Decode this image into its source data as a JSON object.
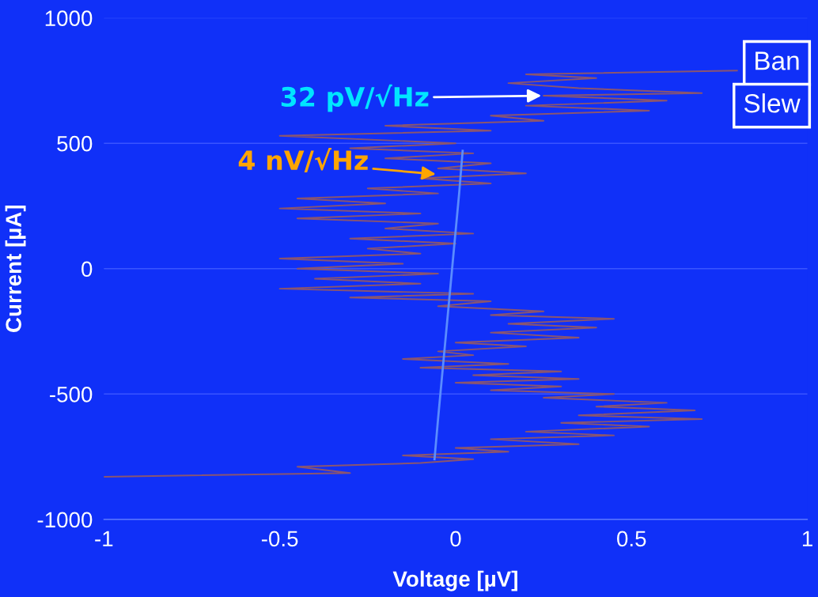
{
  "chart_data": {
    "type": "line",
    "xlabel": "Voltage [µV]",
    "ylabel": "Current [µA]",
    "xlim": [
      -1,
      1
    ],
    "ylim": [
      -1000,
      1000
    ],
    "xticks": [
      -1,
      -0.5,
      0,
      0.5,
      1
    ],
    "yticks": [
      -1000,
      -500,
      0,
      500,
      1000
    ],
    "grid": "y",
    "marker": "none",
    "line_style": "solid",
    "series": [
      {
        "color": "#8a5570",
        "x": [
          -1.0,
          -0.3,
          -0.45,
          -0.1,
          0.05,
          -0.15,
          0.15,
          0.0,
          0.35,
          0.1,
          0.45,
          0.2,
          0.55,
          0.3,
          0.7,
          0.35,
          0.68,
          0.4,
          0.6,
          0.25,
          0.45,
          0.1,
          0.3,
          0.0,
          0.35,
          0.05,
          0.3,
          -0.1,
          0.15,
          -0.15,
          0.05,
          -0.05,
          0.2,
          0.0,
          0.35,
          0.1,
          0.4,
          0.15,
          0.45,
          0.1,
          0.25,
          -0.05,
          0.1,
          -0.3,
          0.05,
          -0.5,
          -0.1,
          -0.4,
          -0.05,
          -0.45,
          -0.15,
          -0.5,
          -0.1,
          -0.25,
          0.0,
          -0.3,
          0.05,
          -0.2,
          -0.05,
          -0.45,
          -0.1,
          -0.5,
          -0.2,
          -0.45,
          -0.05,
          -0.25,
          0.1,
          -0.1,
          0.2,
          -0.05,
          0.1,
          -0.2,
          0.05,
          -0.3,
          0.0,
          -0.5,
          0.1,
          -0.2,
          0.25,
          0.1,
          0.55,
          0.2,
          0.6,
          0.25,
          0.7,
          0.35,
          0.15,
          0.4,
          0.2,
          0.8
        ],
        "values": [
          -830,
          -815,
          -790,
          -775,
          -760,
          -745,
          -730,
          -715,
          -700,
          -680,
          -665,
          -650,
          -630,
          -615,
          -600,
          -585,
          -565,
          -550,
          -535,
          -515,
          -500,
          -485,
          -470,
          -455,
          -440,
          -425,
          -410,
          -395,
          -380,
          -360,
          -345,
          -330,
          -310,
          -295,
          -275,
          -255,
          -235,
          -220,
          -200,
          -185,
          -170,
          -150,
          -130,
          -115,
          -100,
          -80,
          -60,
          -40,
          -20,
          0,
          20,
          40,
          60,
          80,
          100,
          120,
          140,
          160,
          180,
          200,
          220,
          240,
          260,
          280,
          300,
          320,
          340,
          360,
          380,
          400,
          420,
          440,
          460,
          480,
          500,
          530,
          550,
          570,
          590,
          610,
          630,
          650,
          670,
          690,
          700,
          720,
          740,
          760,
          775,
          790
        ]
      },
      {
        "color": "#5a8cff",
        "x": [
          0.02,
          0.01,
          0.0,
          -0.01,
          -0.02,
          -0.03,
          -0.04,
          -0.05,
          -0.06
        ],
        "values": [
          470,
          300,
          150,
          0,
          -150,
          -300,
          -450,
          -600,
          -760
        ]
      }
    ],
    "annotations": [
      {
        "text": "32 pV/√Hz",
        "x": 0.25,
        "y": 690
      },
      {
        "text": "4 nV/√Hz",
        "x": -0.05,
        "y": 376
      },
      "Ban",
      "Slew"
    ]
  }
}
